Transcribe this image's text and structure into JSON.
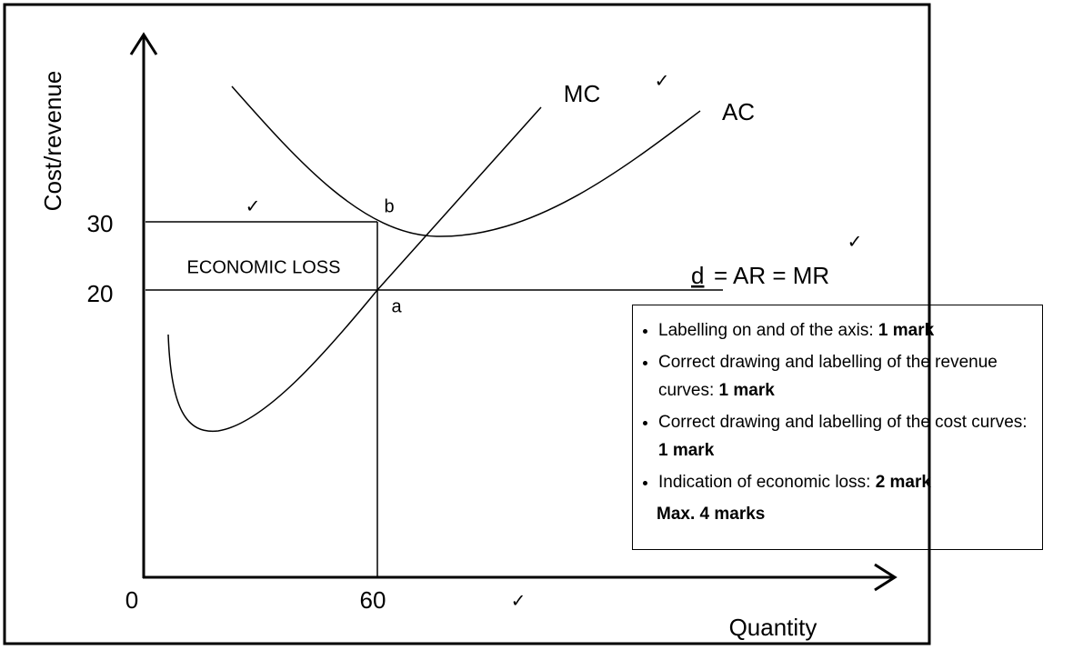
{
  "axes": {
    "y_label": "Cost/revenue",
    "x_label": "Quantity",
    "y_values": [
      "30",
      "20"
    ],
    "x_values": [
      "0",
      "60"
    ]
  },
  "points": {
    "b": "b",
    "a": "a"
  },
  "area_label": "ECONOMIC LOSS",
  "curves": {
    "mc": "MC",
    "ac": "AC",
    "demand": {
      "symbol": "d",
      "rest": "= AR = MR"
    }
  },
  "checks": [
    "✓",
    "✓",
    "✓",
    "✓"
  ],
  "legend": {
    "items": [
      {
        "text": "Labelling on and of the axis: ",
        "bold": "1 mark"
      },
      {
        "text": "Correct drawing and labelling of the revenue curves: ",
        "bold": "1 mark"
      },
      {
        "text": "Correct drawing and labelling of the cost curves: ",
        "bold": "1 mark"
      },
      {
        "text": "Indication of economic loss: ",
        "bold": "2 mark"
      }
    ],
    "footer": "Max. 4 marks"
  }
}
